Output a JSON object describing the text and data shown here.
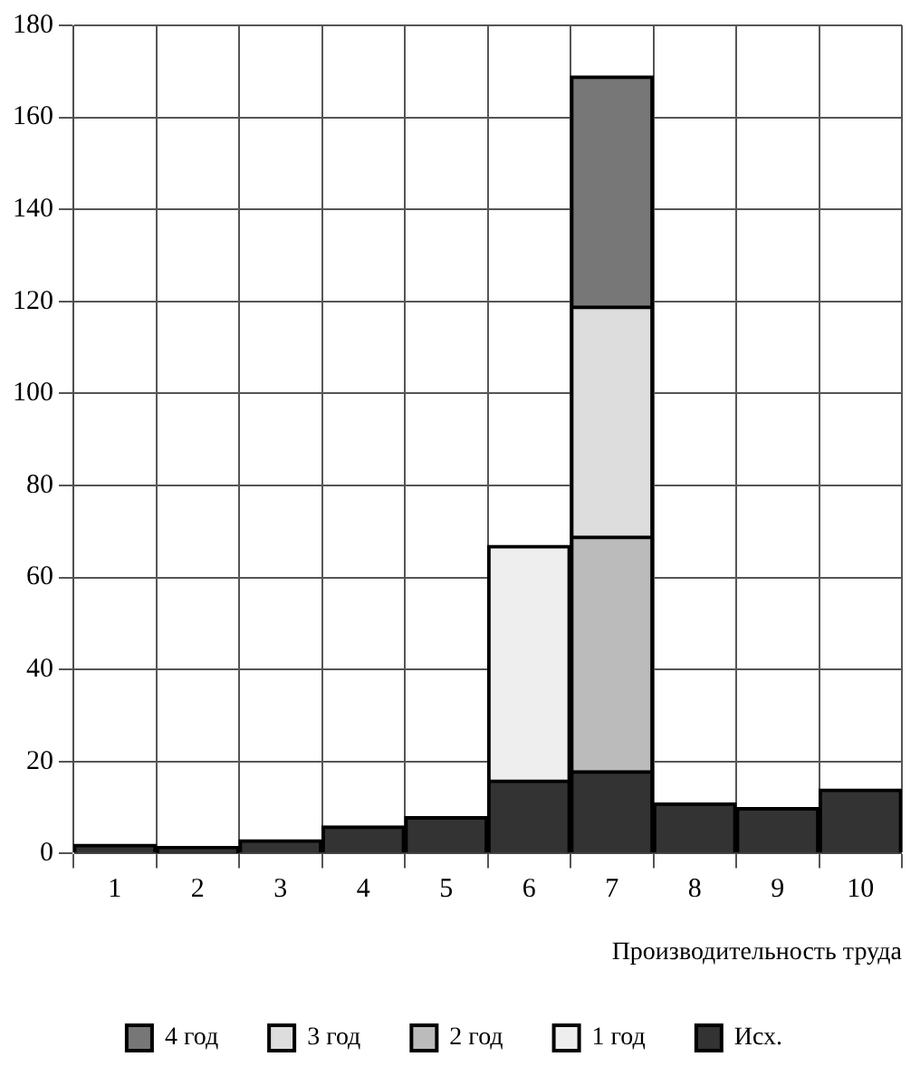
{
  "chart_data": {
    "type": "bar",
    "stacked": true,
    "xlabel": "Производительность труда",
    "categories": [
      "1",
      "2",
      "3",
      "4",
      "5",
      "6",
      "7",
      "8",
      "9",
      "10"
    ],
    "series": [
      {
        "name": "Исх.",
        "color": "#333333",
        "values": [
          2,
          1.5,
          3,
          6,
          8,
          16,
          18,
          11,
          10,
          14
        ]
      },
      {
        "name": "1 год",
        "color": "#eeeeee",
        "values": [
          null,
          null,
          null,
          null,
          null,
          51,
          null,
          null,
          null,
          null
        ]
      },
      {
        "name": "2 год",
        "color": "#bbbbbb",
        "values": [
          null,
          null,
          null,
          null,
          null,
          null,
          51,
          null,
          null,
          null
        ]
      },
      {
        "name": "3 год",
        "color": "#dddddd",
        "values": [
          null,
          null,
          null,
          null,
          null,
          null,
          50,
          null,
          null,
          null
        ]
      },
      {
        "name": "4 год",
        "color": "#777777",
        "values": [
          null,
          null,
          null,
          null,
          null,
          null,
          50,
          null,
          null,
          null
        ]
      }
    ],
    "ylim": [
      0,
      180
    ],
    "yticks": [
      0,
      20,
      40,
      60,
      80,
      100,
      120,
      140,
      160,
      180
    ],
    "grid": true,
    "legend": "bottom"
  }
}
